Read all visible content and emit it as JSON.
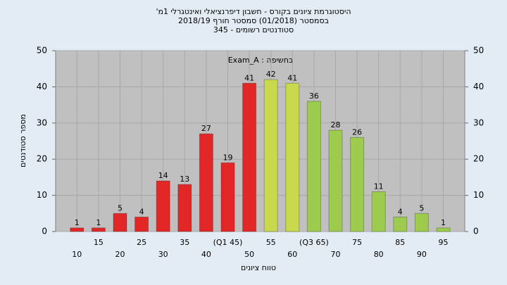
{
  "chart_data": {
    "type": "bar",
    "title": "היסטוגרמת ציונים בקורס - חשבון דיפרנציאלי ואינטגרלי 1מ'",
    "subtitle": "בסמסטר  (01/2018)  סמסטר חורף 2018/19",
    "subtitle2": "סטודנטים רשומים - 345",
    "annotation": "בחשיפה : Exam_A",
    "x_label": "טווח ציונים",
    "y_label": "מספר סטודנטים",
    "categories": [
      "10",
      "15",
      "20",
      "25",
      "30",
      "35",
      "40",
      "(Q1 45)",
      "50",
      "55",
      "60",
      "(Q3 65)",
      "70",
      "75",
      "80",
      "85",
      "90",
      "95"
    ],
    "values": [
      1,
      1,
      5,
      4,
      14,
      13,
      27,
      19,
      41,
      42,
      41,
      36,
      28,
      26,
      11,
      4,
      5,
      1
    ],
    "colors": [
      "#e32626",
      "#e32626",
      "#e32626",
      "#e32626",
      "#e32626",
      "#e32626",
      "#e32626",
      "#e32626",
      "#e32626",
      "#c9d84c",
      "#c9d84c",
      "#9ccb4e",
      "#9ccb4e",
      "#9ccb4e",
      "#9ccb4e",
      "#9ccb4e",
      "#9ccb4e",
      "#9ccb4e"
    ],
    "ylim": [
      0,
      50
    ],
    "yticks": [
      0,
      10,
      20,
      30,
      40,
      50
    ],
    "y2lim": [
      0,
      50
    ],
    "y2ticks": [
      0,
      10,
      20,
      30,
      40,
      50
    ],
    "grid": true
  }
}
